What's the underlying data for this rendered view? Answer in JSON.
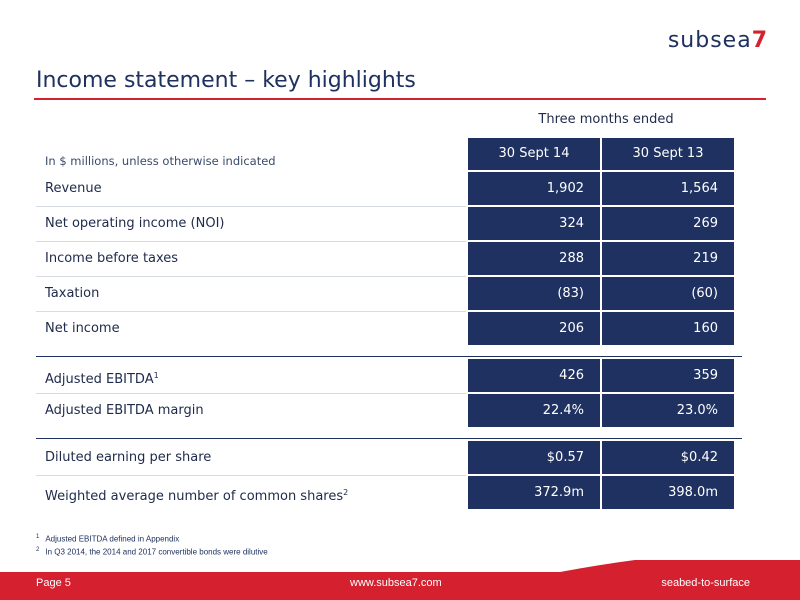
{
  "brand": {
    "name": "subsea",
    "mark": "7"
  },
  "title": "Income statement – key highlights",
  "period_label": "Three months ended",
  "unit_note": "In $ millions, unless otherwise indicated",
  "columns": [
    "30 Sept 14",
    "30 Sept 13"
  ],
  "rows": [
    {
      "label": "Revenue",
      "sup": "",
      "v1": "1,902",
      "v2": "1,564"
    },
    {
      "label": "Net operating income (NOI)",
      "sup": "",
      "v1": "324",
      "v2": "269"
    },
    {
      "label": "Income before taxes",
      "sup": "",
      "v1": "288",
      "v2": "219"
    },
    {
      "label": "Taxation",
      "sup": "",
      "v1": "(83)",
      "v2": "(60)"
    },
    {
      "label": "Net income",
      "sup": "",
      "v1": "206",
      "v2": "160"
    },
    {
      "label": "Adjusted EBITDA",
      "sup": "1",
      "v1": "426",
      "v2": "359"
    },
    {
      "label": "Adjusted EBITDA margin",
      "sup": "",
      "v1": "22.4%",
      "v2": "23.0%"
    },
    {
      "label": "Diluted earning per share",
      "sup": "",
      "v1": "$0.57",
      "v2": "$0.42"
    },
    {
      "label": "Weighted average number of common shares",
      "sup": "2",
      "v1": "372.9m",
      "v2": "398.0m"
    }
  ],
  "footnotes": [
    {
      "num": "1",
      "text": "Adjusted EBITDA defined in Appendix"
    },
    {
      "num": "2",
      "text": "In Q3 2014, the 2014 and 2017 convertible bonds were dilutive"
    }
  ],
  "footer": {
    "page": "Page  5",
    "url": "www.subsea7.com",
    "tagline": "seabed-to-surface"
  },
  "colors": {
    "navy": "#1e3160",
    "red": "#d4202f"
  }
}
